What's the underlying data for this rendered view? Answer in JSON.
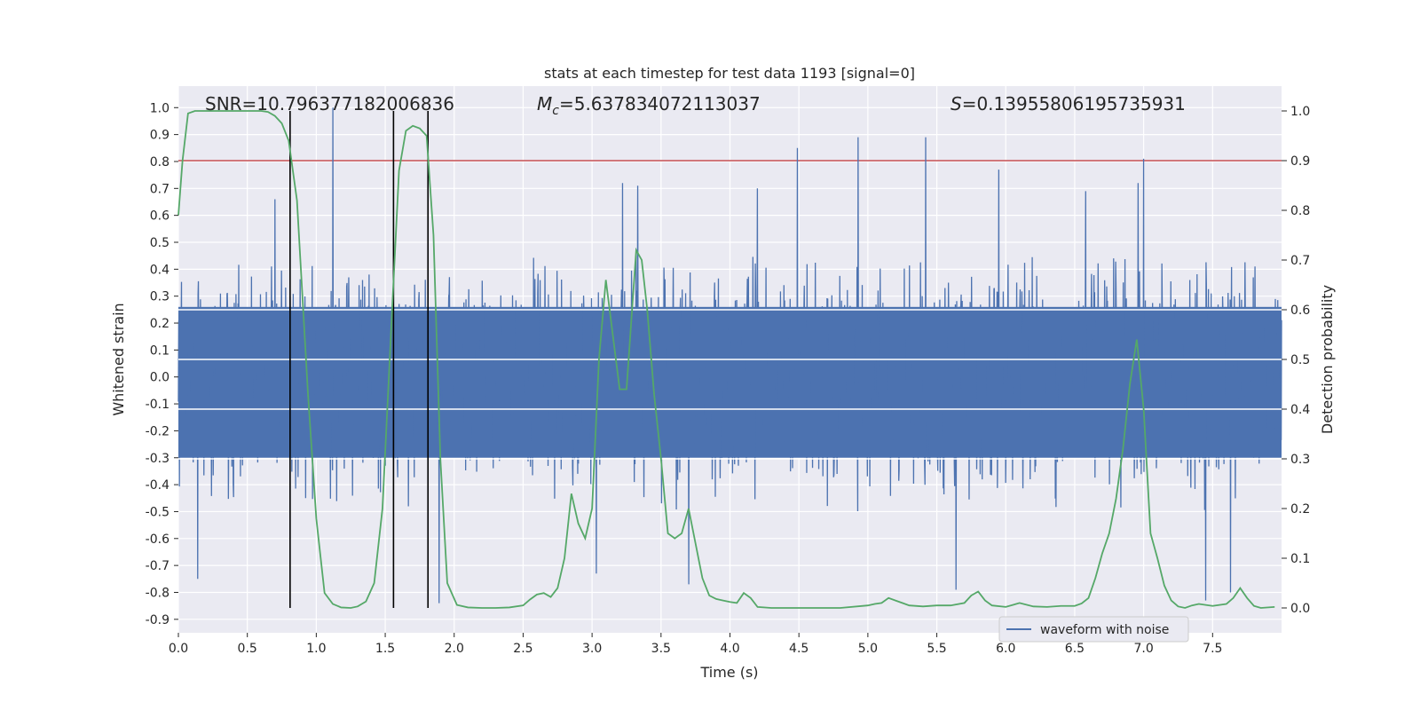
{
  "chart_data": {
    "type": "line",
    "title": "stats at each timestep for test data 1193 [signal=0]",
    "xlabel": "Time (s)",
    "ylabel_left": "Whitened strain",
    "ylabel_right": "Detection probability",
    "xlim": [
      0.0,
      8.0
    ],
    "ylim_left": [
      -0.95,
      1.08
    ],
    "ylim_right": [
      -0.05,
      1.05
    ],
    "x_ticks": [
      "0.0",
      "0.5",
      "1.0",
      "1.5",
      "2.0",
      "2.5",
      "3.0",
      "3.5",
      "4.0",
      "4.5",
      "5.0",
      "5.5",
      "6.0",
      "6.5",
      "7.0",
      "7.5"
    ],
    "x_tick_values": [
      0.0,
      0.5,
      1.0,
      1.5,
      2.0,
      2.5,
      3.0,
      3.5,
      4.0,
      4.5,
      5.0,
      5.5,
      6.0,
      6.5,
      7.0,
      7.5
    ],
    "y_left_ticks": [
      "1.0",
      "0.9",
      "0.8",
      "0.7",
      "0.6",
      "0.5",
      "0.4",
      "0.3",
      "0.2",
      "0.1",
      "0.0",
      "-0.1",
      "-0.2",
      "-0.3",
      "-0.4",
      "-0.5",
      "-0.6",
      "-0.7",
      "-0.8",
      "-0.9"
    ],
    "y_left_tick_values": [
      1.0,
      0.9,
      0.8,
      0.7,
      0.6,
      0.5,
      0.4,
      0.3,
      0.2,
      0.1,
      0.0,
      -0.1,
      -0.2,
      -0.3,
      -0.4,
      -0.5,
      -0.6,
      -0.7,
      -0.8,
      -0.9
    ],
    "y_right_ticks": [
      "1.0",
      "0.9",
      "0.8",
      "0.7",
      "0.6",
      "0.5",
      "0.4",
      "0.3",
      "0.2",
      "0.1",
      "0.0"
    ],
    "y_right_tick_values": [
      1.0,
      0.9,
      0.8,
      0.7,
      0.6,
      0.5,
      0.4,
      0.3,
      0.2,
      0.1,
      0.0
    ],
    "grid": true,
    "legend": {
      "position": "lower-right",
      "label": "waveform with noise"
    },
    "annotations": {
      "snr": "SNR=10.796377182006836",
      "mc_symbol": "M",
      "mc_sub": "c",
      "mc_value": "=5.637834072113037",
      "s_symbol": "S",
      "s_value": "=0.13955806195735931"
    },
    "threshold": 0.9,
    "vertical_markers": [
      0.81,
      1.56,
      1.81
    ],
    "series": [
      {
        "name": "waveform with noise",
        "color": "#4c72b0",
        "kind": "noise",
        "core_range": [
          -0.3,
          0.26
        ],
        "typical_max": 0.45,
        "typical_min": -0.5,
        "spikes": [
          [
            1.12,
            1.0
          ],
          [
            4.49,
            0.85
          ],
          [
            4.93,
            0.89
          ],
          [
            5.42,
            0.89
          ],
          [
            7.0,
            0.81
          ],
          [
            0.7,
            0.66
          ],
          [
            3.22,
            0.72
          ],
          [
            3.33,
            0.71
          ],
          [
            6.58,
            0.69
          ],
          [
            6.96,
            0.72
          ],
          [
            5.95,
            0.77
          ],
          [
            4.2,
            0.7
          ],
          [
            3.7,
            -0.77
          ],
          [
            5.64,
            -0.79
          ],
          [
            7.45,
            -0.83
          ],
          [
            0.14,
            -0.75
          ],
          [
            1.89,
            -0.84
          ],
          [
            3.03,
            -0.73
          ],
          [
            7.63,
            -0.8
          ]
        ]
      },
      {
        "name": "Detection probability",
        "color": "#55a868",
        "x": [
          0.0,
          0.03,
          0.07,
          0.12,
          0.2,
          0.3,
          0.4,
          0.5,
          0.6,
          0.65,
          0.7,
          0.75,
          0.8,
          0.86,
          0.94,
          1.0,
          1.06,
          1.12,
          1.18,
          1.25,
          1.3,
          1.36,
          1.42,
          1.48,
          1.55,
          1.6,
          1.65,
          1.7,
          1.75,
          1.8,
          1.85,
          1.9,
          1.95,
          2.02,
          2.1,
          2.2,
          2.3,
          2.4,
          2.5,
          2.55,
          2.6,
          2.65,
          2.7,
          2.75,
          2.8,
          2.85,
          2.9,
          2.95,
          3.0,
          3.05,
          3.1,
          3.15,
          3.2,
          3.25,
          3.28,
          3.32,
          3.36,
          3.4,
          3.45,
          3.5,
          3.55,
          3.6,
          3.65,
          3.7,
          3.75,
          3.8,
          3.85,
          3.9,
          3.95,
          4.0,
          4.05,
          4.1,
          4.15,
          4.2,
          4.3,
          4.5,
          4.8,
          5.0,
          5.05,
          5.1,
          5.15,
          5.2,
          5.3,
          5.4,
          5.5,
          5.6,
          5.7,
          5.75,
          5.8,
          5.85,
          5.9,
          6.0,
          6.1,
          6.2,
          6.3,
          6.4,
          6.5,
          6.55,
          6.6,
          6.65,
          6.7,
          6.75,
          6.8,
          6.85,
          6.9,
          6.95,
          7.0,
          7.05,
          7.1,
          7.15,
          7.2,
          7.25,
          7.3,
          7.35,
          7.4,
          7.5,
          7.6,
          7.65,
          7.7,
          7.75,
          7.8,
          7.85,
          7.95
        ],
        "y": [
          0.79,
          0.9,
          0.995,
          1.0,
          1.0,
          1.0,
          1.0,
          1.0,
          1.0,
          0.998,
          0.99,
          0.975,
          0.94,
          0.82,
          0.43,
          0.18,
          0.03,
          0.008,
          0.001,
          0.0,
          0.003,
          0.013,
          0.05,
          0.2,
          0.6,
          0.88,
          0.96,
          0.97,
          0.965,
          0.95,
          0.75,
          0.3,
          0.05,
          0.006,
          0.001,
          0.0,
          0.0,
          0.001,
          0.005,
          0.017,
          0.027,
          0.03,
          0.022,
          0.04,
          0.1,
          0.23,
          0.17,
          0.14,
          0.2,
          0.5,
          0.66,
          0.55,
          0.44,
          0.44,
          0.56,
          0.72,
          0.7,
          0.6,
          0.43,
          0.3,
          0.15,
          0.14,
          0.15,
          0.2,
          0.13,
          0.06,
          0.025,
          0.018,
          0.015,
          0.012,
          0.01,
          0.03,
          0.02,
          0.002,
          0.0,
          0.0,
          0.0,
          0.005,
          0.008,
          0.01,
          0.02,
          0.015,
          0.005,
          0.003,
          0.005,
          0.005,
          0.01,
          0.025,
          0.033,
          0.015,
          0.005,
          0.002,
          0.01,
          0.003,
          0.002,
          0.004,
          0.004,
          0.009,
          0.02,
          0.06,
          0.11,
          0.15,
          0.22,
          0.32,
          0.45,
          0.54,
          0.4,
          0.15,
          0.1,
          0.045,
          0.015,
          0.003,
          0.0,
          0.005,
          0.008,
          0.004,
          0.008,
          0.02,
          0.04,
          0.02,
          0.004,
          0.0,
          0.002
        ]
      }
    ]
  }
}
